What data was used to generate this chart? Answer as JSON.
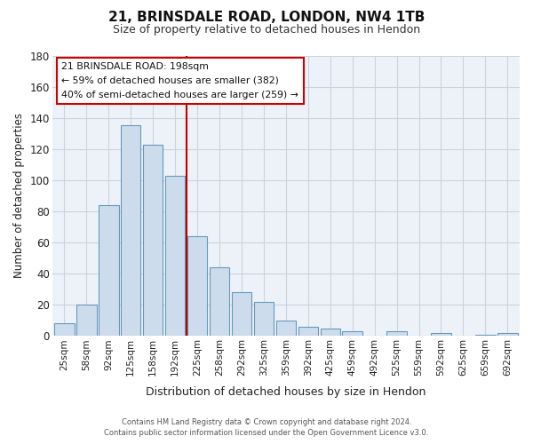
{
  "title1": "21, BRINSDALE ROAD, LONDON, NW4 1TB",
  "title2": "Size of property relative to detached houses in Hendon",
  "xlabel": "Distribution of detached houses by size in Hendon",
  "ylabel": "Number of detached properties",
  "bar_labels": [
    "25sqm",
    "58sqm",
    "92sqm",
    "125sqm",
    "158sqm",
    "192sqm",
    "225sqm",
    "258sqm",
    "292sqm",
    "325sqm",
    "359sqm",
    "392sqm",
    "425sqm",
    "459sqm",
    "492sqm",
    "525sqm",
    "559sqm",
    "592sqm",
    "625sqm",
    "659sqm",
    "692sqm"
  ],
  "bar_values": [
    8,
    20,
    84,
    135,
    123,
    103,
    64,
    44,
    28,
    22,
    10,
    6,
    5,
    3,
    0,
    3,
    0,
    2,
    0,
    1,
    2
  ],
  "bar_color": "#cddcec",
  "bar_edge_color": "#6699bb",
  "vline_x": 5.5,
  "vline_color": "#bb0000",
  "ylim": [
    0,
    180
  ],
  "yticks": [
    0,
    20,
    40,
    60,
    80,
    100,
    120,
    140,
    160,
    180
  ],
  "annotation_title": "21 BRINSDALE ROAD: 198sqm",
  "annotation_line1": "← 59% of detached houses are smaller (382)",
  "annotation_line2": "40% of semi-detached houses are larger (259) →",
  "annotation_box_color": "#ffffff",
  "annotation_box_edge": "#cc0000",
  "footer1": "Contains HM Land Registry data © Crown copyright and database right 2024.",
  "footer2": "Contains public sector information licensed under the Open Government Licence v3.0.",
  "bg_color": "#ffffff",
  "plot_bg_color": "#edf2f8",
  "grid_color": "#c8d4e0"
}
